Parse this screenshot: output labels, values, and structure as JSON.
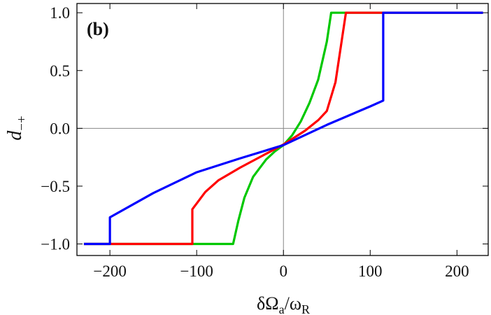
{
  "chart_data": {
    "type": "line",
    "annotation": "(b)",
    "x_label": [
      "δΩ",
      "a",
      "/ω",
      "R"
    ],
    "y_label": [
      "d",
      "−+"
    ],
    "xlim": [
      -238,
      236
    ],
    "ylim": [
      -1.1,
      1.08
    ],
    "xticks": [
      {
        "value": -200,
        "label": "−200"
      },
      {
        "value": -100,
        "label": "−100"
      },
      0,
      100,
      200
    ],
    "yticks": [
      {
        "value": -1.0,
        "label": "−1.0"
      },
      {
        "value": -0.5,
        "label": "−0.5"
      },
      {
        "value": 0.0,
        "label": "0.0"
      },
      {
        "value": 0.5,
        "label": "0.5"
      },
      {
        "value": 1.0,
        "label": "1.0"
      }
    ],
    "zero_lines": true,
    "series": [
      {
        "color": "#00c800",
        "x": [
          -230,
          -58,
          -52,
          -45,
          -35,
          -20,
          -10,
          0,
          10,
          20,
          30,
          40,
          50,
          55,
          230
        ],
        "values": [
          -1,
          -1,
          -0.8,
          -0.6,
          -0.42,
          -0.27,
          -0.2,
          -0.145,
          -0.06,
          0.06,
          0.22,
          0.42,
          0.75,
          1,
          1
        ]
      },
      {
        "color": "#ff0000",
        "x": [
          -230,
          -105,
          -105,
          -90,
          -75,
          -50,
          -25,
          0,
          25,
          40,
          50,
          60,
          68,
          72,
          230
        ],
        "values": [
          -1,
          -1,
          -0.7,
          -0.55,
          -0.45,
          -0.34,
          -0.24,
          -0.14,
          -0.02,
          0.07,
          0.15,
          0.4,
          0.8,
          1,
          1
        ]
      },
      {
        "color": "#0000ff",
        "x": [
          -230,
          -200,
          -200,
          -150,
          -100,
          -50,
          0,
          50,
          100,
          115,
          115,
          230
        ],
        "values": [
          -1,
          -1,
          -0.77,
          -0.56,
          -0.38,
          -0.26,
          -0.145,
          0.03,
          0.19,
          0.24,
          1,
          1
        ]
      }
    ]
  }
}
